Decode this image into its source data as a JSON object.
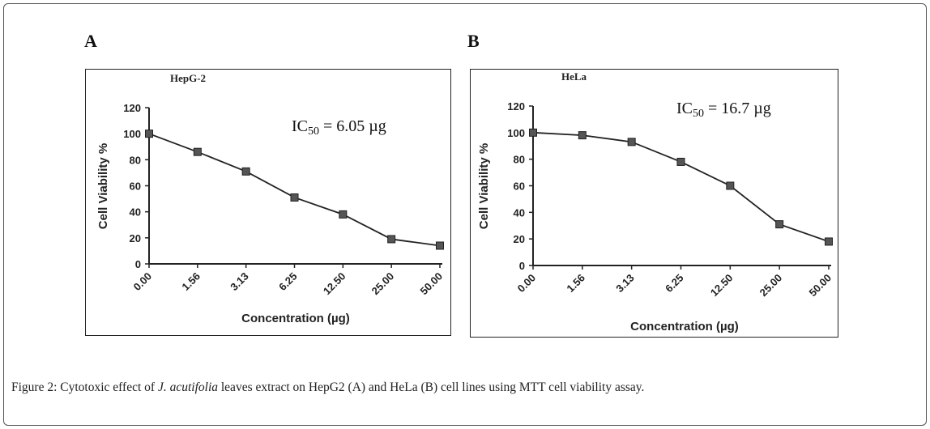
{
  "caption": {
    "label": "Figure 2:",
    "pre": " Cytotoxic effect of ",
    "species": "J. acutifolia",
    "post": " leaves extract on HepG2 (A) and HeLa (B) cell lines using MTT cell viability assay."
  },
  "chart_data": [
    {
      "type": "line",
      "panel": "A",
      "title": "HepG-2",
      "annotation": {
        "prefix": "IC",
        "sub": "50",
        "value": " =  6.05 µg"
      },
      "categories": [
        "0.00",
        "1.56",
        "3.13",
        "6.25",
        "12.50",
        "25.00",
        "50.00"
      ],
      "values": [
        100,
        86,
        71,
        51,
        38,
        19,
        14
      ],
      "xlabel": "Concentration (µg)",
      "ylabel": "Cell Viability %",
      "ylim": [
        0,
        120
      ],
      "yticks": [
        0,
        20,
        40,
        60,
        80,
        100,
        120
      ],
      "grid": false,
      "marker": "square",
      "color": "#222222"
    },
    {
      "type": "line",
      "panel": "B",
      "title": "HeLa",
      "annotation": {
        "prefix": "IC",
        "sub": "50",
        "value": " =  16.7 µg"
      },
      "categories": [
        "0.00",
        "1.56",
        "3.13",
        "6.25",
        "12.50",
        "25.00",
        "50.00"
      ],
      "values": [
        100,
        98,
        93,
        78,
        60,
        31,
        18
      ],
      "xlabel": "Concentration (µg)",
      "ylabel": "Cell Viability %",
      "ylim": [
        0,
        120
      ],
      "yticks": [
        0,
        20,
        40,
        60,
        80,
        100,
        120
      ],
      "grid": false,
      "marker": "square",
      "color": "#222222"
    }
  ]
}
